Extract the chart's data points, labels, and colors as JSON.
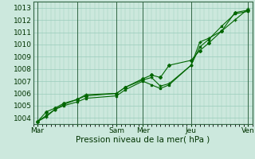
{
  "xlabel": "Pression niveau de la mer( hPa )",
  "bg_color": "#cce8dd",
  "grid_color": "#99ccbb",
  "line_color": "#006600",
  "dark_line_color": "#004400",
  "ylim": [
    1003.5,
    1013.5
  ],
  "xlim": [
    0,
    100
  ],
  "yticks": [
    1004,
    1005,
    1006,
    1007,
    1008,
    1009,
    1010,
    1011,
    1012,
    1013
  ],
  "xtick_positions": [
    2,
    20,
    38,
    50,
    72,
    98
  ],
  "xtick_labels": [
    "Mar",
    "",
    "Sam",
    "Mer",
    "Jeu",
    "Ven"
  ],
  "vline_positions": [
    2,
    20,
    38,
    50,
    72,
    98
  ],
  "series1_x": [
    2,
    6,
    10,
    14,
    20,
    24,
    38,
    42,
    50,
    54,
    58,
    62,
    72,
    76,
    80,
    86,
    92,
    98
  ],
  "series1_y": [
    1003.7,
    1004.5,
    1004.8,
    1005.2,
    1005.5,
    1005.8,
    1006.0,
    1006.5,
    1007.2,
    1007.5,
    1007.3,
    1008.3,
    1008.7,
    1009.5,
    1010.1,
    1011.1,
    1012.6,
    1012.8
  ],
  "series2_x": [
    2,
    6,
    10,
    14,
    20,
    24,
    38,
    42,
    50,
    54,
    58,
    62,
    72,
    76,
    80,
    86,
    92,
    98
  ],
  "series2_y": [
    1003.7,
    1004.2,
    1004.7,
    1005.0,
    1005.3,
    1005.6,
    1005.8,
    1006.3,
    1007.0,
    1006.7,
    1006.4,
    1006.7,
    1008.3,
    1009.8,
    1010.4,
    1011.5,
    1012.5,
    1012.7
  ],
  "series3_x": [
    2,
    6,
    10,
    14,
    20,
    24,
    38,
    42,
    50,
    54,
    58,
    62,
    72,
    76,
    80,
    86,
    92,
    98
  ],
  "series3_y": [
    1003.7,
    1004.1,
    1004.7,
    1005.1,
    1005.5,
    1005.9,
    1006.0,
    1006.5,
    1007.1,
    1007.3,
    1006.6,
    1006.8,
    1008.3,
    1010.2,
    1010.5,
    1011.1,
    1012.0,
    1012.9
  ]
}
